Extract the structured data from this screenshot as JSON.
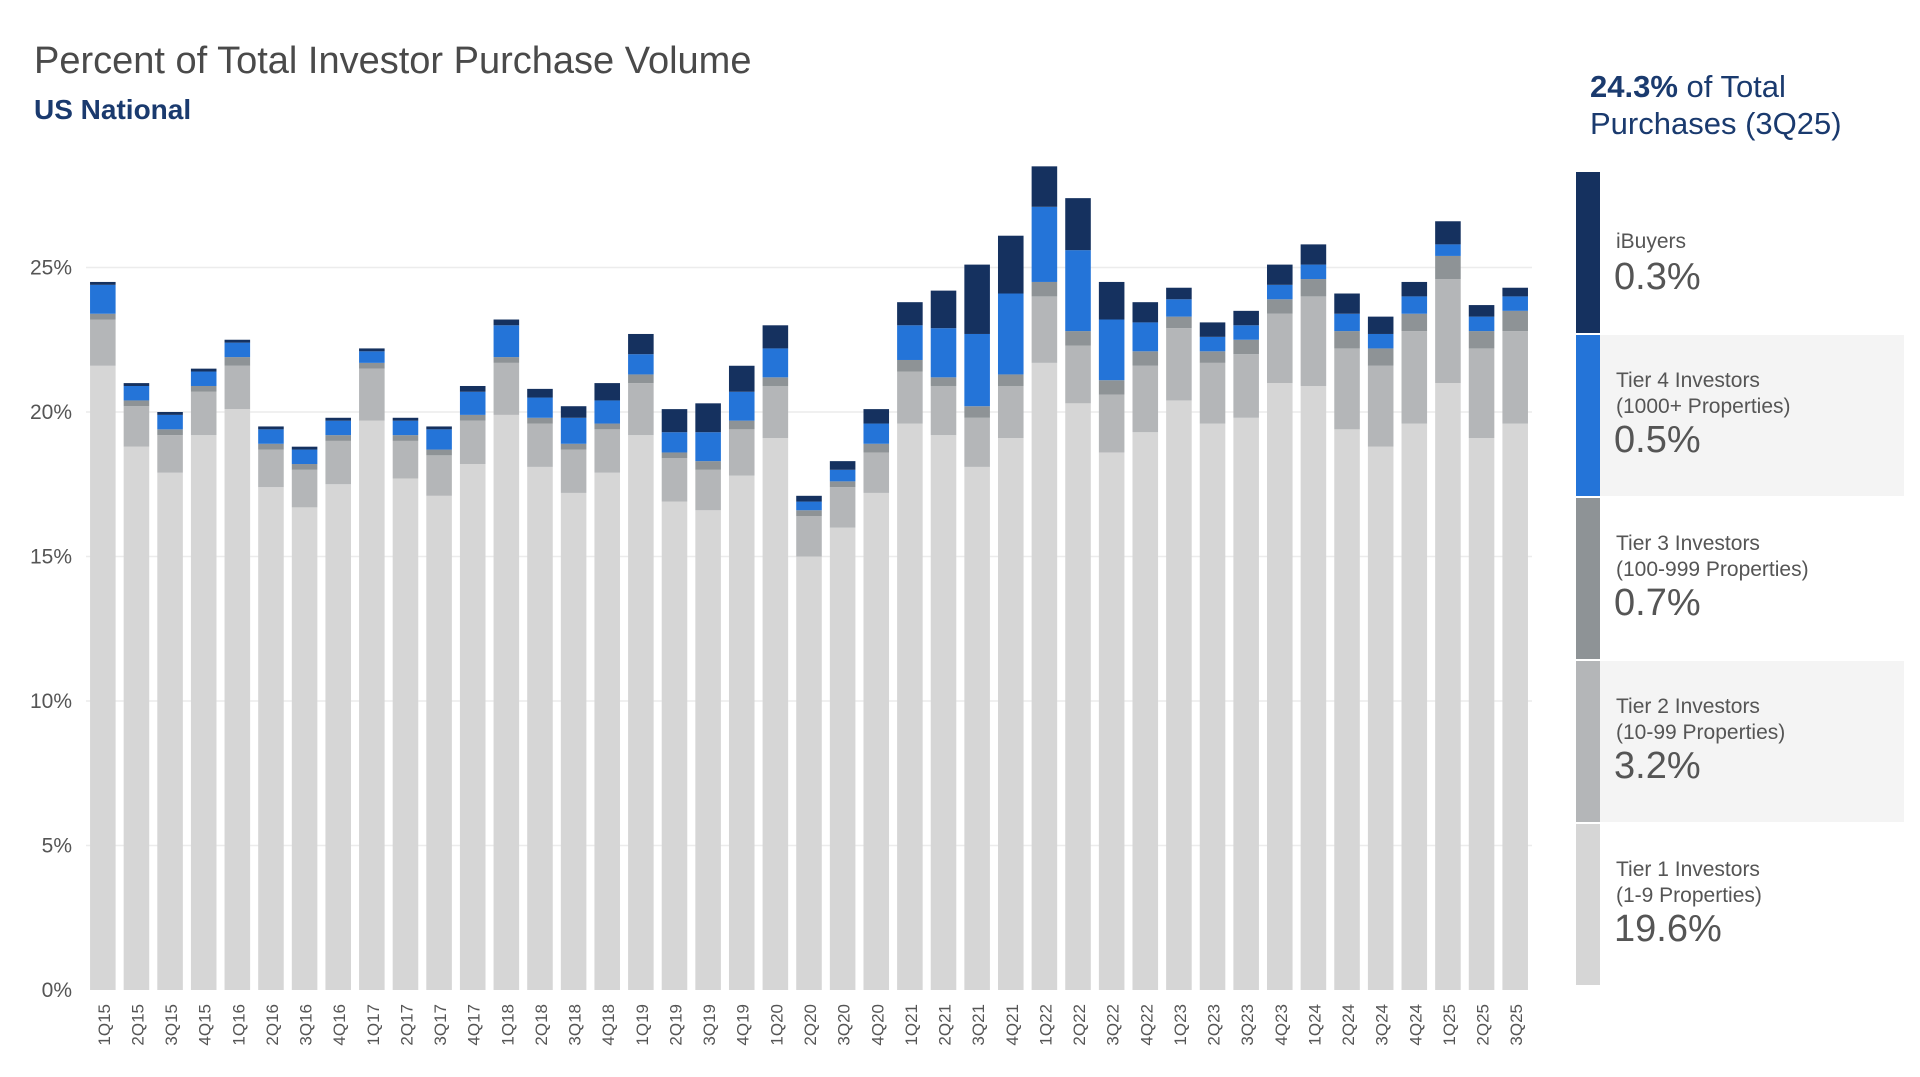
{
  "chart_data": {
    "type": "bar",
    "stacked": true,
    "title": "Percent of Total Investor Purchase Volume",
    "subtitle": "US National",
    "categories": [
      "1Q15",
      "2Q15",
      "3Q15",
      "4Q15",
      "1Q16",
      "2Q16",
      "3Q16",
      "4Q16",
      "1Q17",
      "2Q17",
      "3Q17",
      "4Q17",
      "1Q18",
      "2Q18",
      "3Q18",
      "4Q18",
      "1Q19",
      "2Q19",
      "3Q19",
      "4Q19",
      "1Q20",
      "2Q20",
      "3Q20",
      "4Q20",
      "1Q21",
      "2Q21",
      "3Q21",
      "4Q21",
      "1Q22",
      "2Q22",
      "3Q22",
      "4Q22",
      "1Q23",
      "2Q23",
      "3Q23",
      "4Q23",
      "1Q24",
      "2Q24",
      "3Q24",
      "4Q24",
      "1Q25",
      "2Q25",
      "3Q25"
    ],
    "yticks": [
      "0%",
      "5%",
      "10%",
      "15%",
      "20%",
      "25%"
    ],
    "ylim": [
      0,
      30
    ],
    "grid": true,
    "series": [
      {
        "name": "Tier 1 Investors (1-9 Properties)",
        "color": "#d6d6d6",
        "values": [
          21.6,
          18.8,
          17.9,
          19.2,
          20.1,
          17.4,
          16.7,
          17.5,
          19.7,
          17.7,
          17.1,
          18.2,
          19.9,
          18.1,
          17.2,
          17.9,
          19.2,
          16.9,
          16.6,
          17.8,
          19.1,
          15.0,
          16.0,
          17.2,
          19.6,
          19.2,
          18.1,
          19.1,
          21.7,
          20.3,
          18.6,
          19.3,
          20.4,
          19.6,
          19.8,
          21.0,
          20.9,
          19.4,
          18.8,
          19.6,
          21.0,
          19.1,
          19.6
        ]
      },
      {
        "name": "Tier 2 Investors (10-99 Properties)",
        "color": "#b4b6b8",
        "values": [
          1.6,
          1.4,
          1.3,
          1.5,
          1.5,
          1.3,
          1.3,
          1.5,
          1.8,
          1.3,
          1.4,
          1.5,
          1.8,
          1.5,
          1.5,
          1.5,
          1.8,
          1.5,
          1.4,
          1.6,
          1.8,
          1.4,
          1.4,
          1.4,
          1.8,
          1.7,
          1.7,
          1.8,
          2.3,
          2.0,
          2.0,
          2.3,
          2.5,
          2.1,
          2.2,
          2.4,
          3.1,
          2.8,
          2.8,
          3.2,
          3.6,
          3.1,
          3.2
        ]
      },
      {
        "name": "Tier 3 Investors (100-999 Properties)",
        "color": "#8e9396",
        "values": [
          0.2,
          0.2,
          0.2,
          0.2,
          0.3,
          0.2,
          0.2,
          0.2,
          0.2,
          0.2,
          0.2,
          0.2,
          0.2,
          0.2,
          0.2,
          0.2,
          0.3,
          0.2,
          0.3,
          0.3,
          0.3,
          0.2,
          0.2,
          0.3,
          0.4,
          0.3,
          0.4,
          0.4,
          0.5,
          0.5,
          0.5,
          0.5,
          0.4,
          0.4,
          0.5,
          0.5,
          0.6,
          0.6,
          0.6,
          0.6,
          0.8,
          0.6,
          0.7
        ]
      },
      {
        "name": "Tier 4 Investors (1000+ Properties)",
        "color": "#2474d8",
        "values": [
          1.0,
          0.5,
          0.5,
          0.5,
          0.5,
          0.5,
          0.5,
          0.5,
          0.4,
          0.5,
          0.7,
          0.8,
          1.1,
          0.7,
          0.9,
          0.8,
          0.7,
          0.7,
          1.0,
          1.0,
          1.0,
          0.3,
          0.4,
          0.7,
          1.2,
          1.7,
          2.5,
          2.8,
          2.6,
          2.8,
          2.1,
          1.0,
          0.6,
          0.5,
          0.5,
          0.5,
          0.5,
          0.6,
          0.5,
          0.6,
          0.4,
          0.5,
          0.5
        ]
      },
      {
        "name": "iBuyers",
        "color": "#15315f",
        "values": [
          0.1,
          0.1,
          0.1,
          0.1,
          0.1,
          0.1,
          0.1,
          0.1,
          0.1,
          0.1,
          0.1,
          0.2,
          0.2,
          0.3,
          0.4,
          0.6,
          0.7,
          0.8,
          1.0,
          0.9,
          0.8,
          0.2,
          0.3,
          0.5,
          0.8,
          1.3,
          2.4,
          2.0,
          1.4,
          1.8,
          1.3,
          0.7,
          0.4,
          0.5,
          0.5,
          0.7,
          0.7,
          0.7,
          0.6,
          0.5,
          0.8,
          0.4,
          0.3
        ]
      }
    ]
  },
  "summary": {
    "value": "24.3%",
    "text_line1": "of Total",
    "text_line2": "Purchases (3Q25)"
  },
  "legend": [
    {
      "name": "iBuyers",
      "value": "0.3%",
      "color": "#15315f"
    },
    {
      "name": "Tier 4 Investors\n(1000+ Properties)",
      "value": "0.5%",
      "color": "#2474d8"
    },
    {
      "name": "Tier 3 Investors\n(100-999 Properties)",
      "value": "0.7%",
      "color": "#8e9396"
    },
    {
      "name": "Tier 2 Investors\n(10-99 Properties)",
      "value": "3.2%",
      "color": "#b4b6b8"
    },
    {
      "name": "Tier 1 Investors\n(1-9 Properties)",
      "value": "19.6%",
      "color": "#d6d6d6"
    }
  ]
}
